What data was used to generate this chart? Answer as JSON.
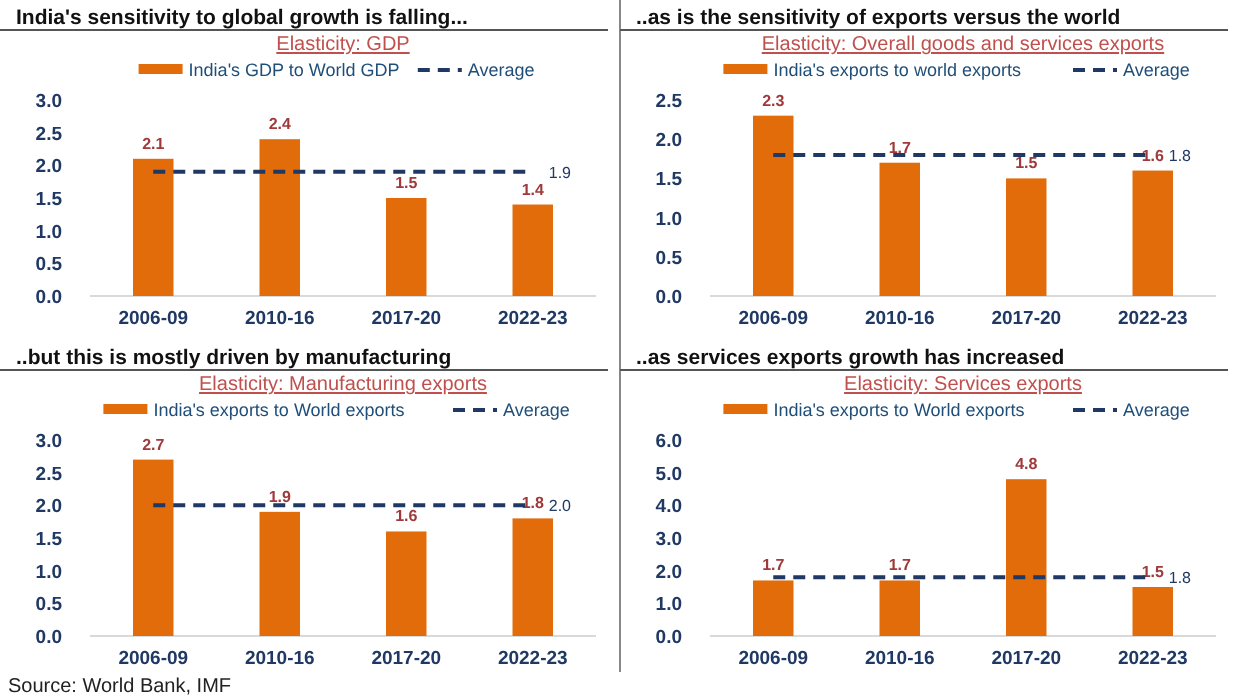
{
  "chart_data": [
    {
      "type": "bar",
      "title": "India's sensitivity to global growth is falling...",
      "subtitle": "Elasticity: GDP",
      "categories": [
        "2006-09",
        "2010-16",
        "2017-20",
        "2022-23"
      ],
      "ylim": [
        0,
        3
      ],
      "yticks": [
        {
          "value": 0,
          "label": "0.0"
        },
        0.5,
        {
          "value": 1,
          "label": "1.0"
        },
        1.5,
        {
          "value": 2,
          "label": "2.0"
        },
        2.5,
        {
          "value": 3,
          "label": "3.0"
        }
      ],
      "legend": "top",
      "grid": false,
      "series": [
        {
          "name": "India's GDP to World GDP",
          "color": "#e26b0a",
          "values": [
            2.1,
            2.4,
            1.5,
            1.4
          ],
          "value_labels": [
            "2.1",
            "2.4",
            "1.5",
            "1.4"
          ]
        },
        {
          "type": "line",
          "name": "Average",
          "color": "#1f3864",
          "line_style": "dashed",
          "values": [
            1.9,
            1.9,
            1.9,
            1.9
          ],
          "value_labels": [
            null,
            null,
            null,
            "1.9"
          ]
        }
      ]
    },
    {
      "type": "bar",
      "title": "..as is the sensitivity of exports versus the world",
      "subtitle": "Elasticity: Overall goods and services exports",
      "categories": [
        "2006-09",
        "2010-16",
        "2017-20",
        "2022-23"
      ],
      "ylim": [
        0,
        2.5
      ],
      "yticks": [
        {
          "value": 0,
          "label": "0.0"
        },
        0.5,
        {
          "value": 1,
          "label": "1.0"
        },
        1.5,
        {
          "value": 2,
          "label": "2.0"
        },
        2.5
      ],
      "legend": "top",
      "grid": false,
      "series": [
        {
          "name": "India's exports to world exports",
          "color": "#e26b0a",
          "values": [
            2.3,
            1.7,
            1.5,
            1.6
          ],
          "value_labels": [
            "2.3",
            "1.7",
            "1.5",
            "1.6"
          ]
        },
        {
          "type": "line",
          "name": "Average",
          "color": "#1f3864",
          "line_style": "dashed",
          "values": [
            1.8,
            1.8,
            1.8,
            1.8
          ],
          "value_labels": [
            null,
            null,
            null,
            "1.8"
          ]
        }
      ]
    },
    {
      "type": "bar",
      "title": "..but this is mostly driven by manufacturing",
      "subtitle": "Elasticity: Manufacturing exports",
      "categories": [
        "2006-09",
        "2010-16",
        "2017-20",
        "2022-23"
      ],
      "ylim": [
        0,
        3
      ],
      "yticks": [
        {
          "value": 0,
          "label": "0.0"
        },
        0.5,
        {
          "value": 1,
          "label": "1.0"
        },
        1.5,
        {
          "value": 2,
          "label": "2.0"
        },
        2.5,
        {
          "value": 3,
          "label": "3.0"
        }
      ],
      "legend": "top",
      "grid": false,
      "annotations": [
        "Source: World Bank, IMF"
      ],
      "series": [
        {
          "name": "India's exports to World exports",
          "color": "#e26b0a",
          "values": [
            2.7,
            1.9,
            1.6,
            1.8
          ],
          "value_labels": [
            "2.7",
            "1.9",
            "1.6",
            "1.8"
          ]
        },
        {
          "type": "line",
          "name": "Average",
          "color": "#1f3864",
          "line_style": "dashed",
          "values": [
            2.0,
            2.0,
            2.0,
            2.0
          ],
          "value_labels": [
            null,
            null,
            null,
            "2.0"
          ]
        }
      ]
    },
    {
      "type": "bar",
      "title": "..as services exports growth has increased",
      "subtitle": "Elasticity: Services exports",
      "categories": [
        "2006-09",
        "2010-16",
        "2017-20",
        "2022-23"
      ],
      "ylim": [
        0,
        6
      ],
      "yticks": [
        {
          "value": 0,
          "label": "0.0"
        },
        {
          "value": 1,
          "label": "1.0"
        },
        {
          "value": 2,
          "label": "2.0"
        },
        {
          "value": 3,
          "label": "3.0"
        },
        {
          "value": 4,
          "label": "4.0"
        },
        {
          "value": 5,
          "label": "5.0"
        },
        {
          "value": 6,
          "label": "6.0"
        }
      ],
      "legend": "top",
      "grid": false,
      "series": [
        {
          "name": "India's exports to World exports",
          "color": "#e26b0a",
          "values": [
            1.7,
            1.7,
            4.8,
            1.5
          ],
          "value_labels": [
            "1.7",
            "1.7",
            "4.8",
            "1.5"
          ]
        },
        {
          "type": "line",
          "name": "Average",
          "color": "#1f3864",
          "line_style": "dashed",
          "values": [
            1.8,
            1.8,
            1.8,
            1.8
          ],
          "value_labels": [
            null,
            null,
            null,
            "1.8"
          ]
        }
      ]
    }
  ]
}
